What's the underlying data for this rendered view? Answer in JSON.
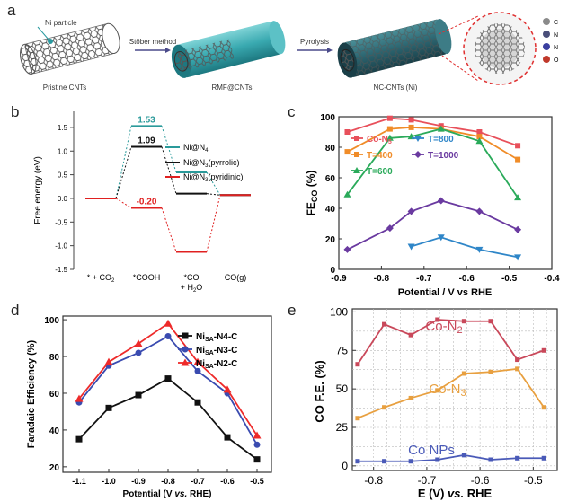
{
  "panel_a": {
    "letter": "a",
    "ni_label": "Ni particle",
    "step1": "Stöber method",
    "step2": "Pyrolysis",
    "cap1": "Pristine CNTs",
    "cap2": "RMF@CNTs",
    "cap3": "NC-CNTs (Ni)",
    "legend": [
      "C",
      "N",
      "N",
      "O"
    ],
    "legend_colors": [
      "#8a8a8a",
      "#4a4f7a",
      "#3b3fa0",
      "#c0392b"
    ]
  },
  "panel_letters": {
    "b": "b",
    "c": "c",
    "d": "d",
    "e": "e"
  },
  "chart_data": [
    {
      "panel": "b",
      "type": "line",
      "ylabel": "Free energy (eV)",
      "ylim": [
        -1.5,
        1.7
      ],
      "yticks": [
        "1.5",
        "1.0",
        "0.5",
        "0.0",
        "-0.5",
        "-1.0",
        "-1.5"
      ],
      "categories": [
        "* + CO2",
        "*COOH",
        "*CO + H2O",
        "CO(g)"
      ],
      "series": [
        {
          "name": "Ni@N4",
          "color": "#2a9a9a",
          "values": [
            0,
            1.53,
            0.55,
            0.07
          ]
        },
        {
          "name": "Ni@N3(pyrrolic)",
          "color": "#111111",
          "values": [
            0,
            1.09,
            0.1,
            0.07
          ]
        },
        {
          "name": "Ni@N3(pyridinic)",
          "color": "#e02020",
          "values": [
            0,
            -0.2,
            -1.13,
            0.07
          ]
        }
      ],
      "annotations": [
        "1.53",
        "1.09",
        "-0.20"
      ],
      "grid": false,
      "legend": "top-right"
    },
    {
      "panel": "c",
      "type": "line",
      "ylabel": "FECO (%)",
      "xlabel": "Potential / V vs RHE",
      "xlim": [
        -0.9,
        -0.4
      ],
      "ylim": [
        0,
        100
      ],
      "xticks": [
        "-0.9",
        "-0.8",
        "-0.7",
        "-0.6",
        "-0.5",
        "-0.4"
      ],
      "yticks": [
        "0",
        "20",
        "40",
        "60",
        "80",
        "100"
      ],
      "x": [
        -0.88,
        -0.78,
        -0.73,
        -0.66,
        -0.57,
        -0.48
      ],
      "series": [
        {
          "name": "Co-N5",
          "color": "#e8505b",
          "marker": "square",
          "values": [
            90,
            99,
            98,
            94,
            90,
            81
          ]
        },
        {
          "name": "T=400",
          "color": "#f08c28",
          "marker": "square",
          "values": [
            77,
            92,
            93,
            92,
            87,
            72
          ]
        },
        {
          "name": "T=600",
          "color": "#2aaa5a",
          "marker": "triangle",
          "values": [
            49,
            86,
            87,
            92,
            84,
            47
          ]
        },
        {
          "name": "T=800",
          "color": "#2f86c8",
          "marker": "triangle-down",
          "values": [
            null,
            null,
            15,
            21,
            13,
            8
          ]
        },
        {
          "name": "T=1000",
          "color": "#6a3aa0",
          "marker": "diamond",
          "values": [
            13,
            27,
            38,
            45,
            38,
            26
          ]
        }
      ],
      "legend": "inside",
      "grid": false
    },
    {
      "panel": "d",
      "type": "line",
      "ylabel": "Faradaic Efficiency (%)",
      "xlabel": "Potential (V vs. RHE)",
      "ylim": [
        17,
        102
      ],
      "categories": [
        "-1.1",
        "-1.0",
        "-0.9",
        "-0.8",
        "-0.7",
        "-0.6",
        "-0.5"
      ],
      "yticks": [
        "20",
        "40",
        "60",
        "80",
        "100"
      ],
      "series": [
        {
          "name": "NiSA-N4-C",
          "color": "#111111",
          "marker": "square",
          "values": [
            35,
            52,
            59,
            68,
            55,
            36,
            24
          ]
        },
        {
          "name": "NiSA-N3-C",
          "color": "#3a4bb0",
          "marker": "circle",
          "values": [
            55,
            75,
            82,
            91,
            72,
            60,
            32
          ]
        },
        {
          "name": "NiSA-N2-C",
          "color": "#ee2a2a",
          "marker": "triangle",
          "values": [
            57,
            77,
            87,
            98,
            77,
            62,
            37
          ]
        }
      ],
      "legend": "top-right",
      "grid": false
    },
    {
      "panel": "e",
      "type": "line",
      "ylabel": "CO F.E. (%)",
      "xlabel": "E (V) vs. RHE",
      "xlim": [
        -0.84,
        -0.455
      ],
      "ylim": [
        -3,
        102
      ],
      "xticks": [
        "-0.8",
        "-0.7",
        "-0.6",
        "-0.5"
      ],
      "yticks": [
        "0",
        "25",
        "50",
        "75",
        "100"
      ],
      "series": [
        {
          "name": "Co-N2",
          "color": "#c9485a",
          "x": [
            -0.83,
            -0.78,
            -0.73,
            -0.68,
            -0.63,
            -0.58,
            -0.53,
            -0.48
          ],
          "values": [
            66,
            92,
            85,
            95,
            94,
            94,
            69,
            75
          ]
        },
        {
          "name": "Co-N3",
          "color": "#e8a040",
          "x": [
            -0.83,
            -0.78,
            -0.73,
            -0.68,
            -0.63,
            -0.58,
            -0.53,
            -0.48
          ],
          "values": [
            31,
            38,
            44,
            49,
            60,
            61,
            63,
            38
          ]
        },
        {
          "name": "Co NPs",
          "color": "#4a5ab8",
          "x": [
            -0.83,
            -0.78,
            -0.73,
            -0.68,
            -0.63,
            -0.58,
            -0.53,
            -0.48
          ],
          "values": [
            3,
            3,
            3,
            4,
            7,
            4,
            5,
            5
          ]
        }
      ],
      "grid": true,
      "legend": "inline labels"
    }
  ]
}
